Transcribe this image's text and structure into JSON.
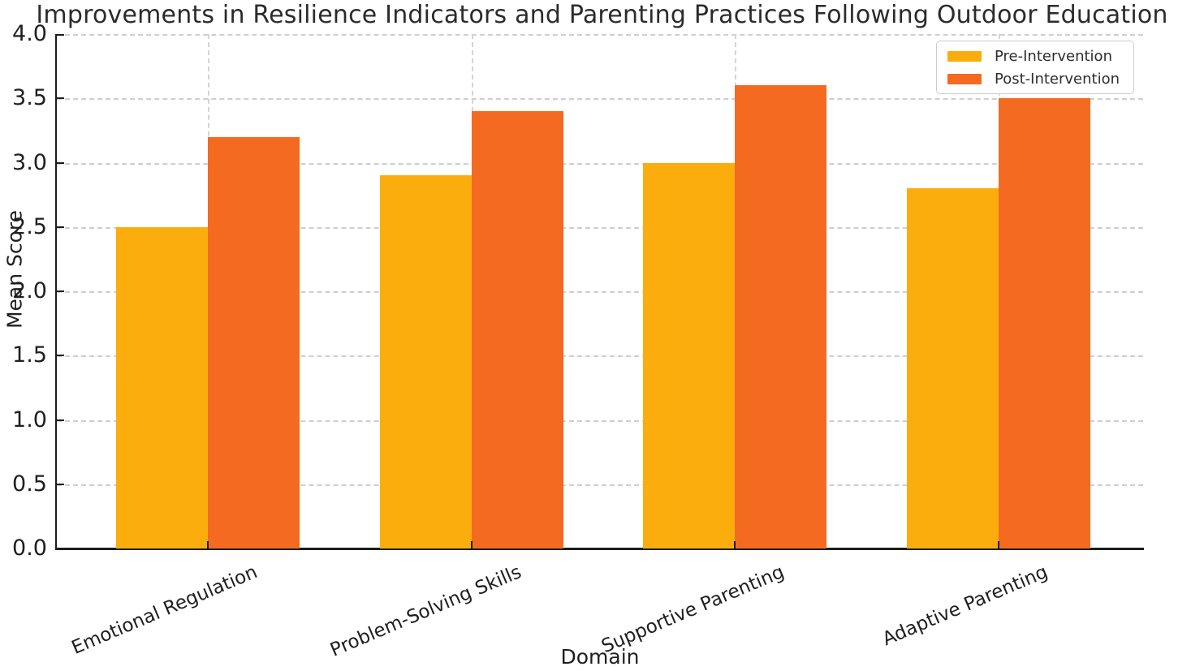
{
  "chart_data": {
    "type": "bar",
    "title": "Improvements in Resilience Indicators and Parenting Practices Following Outdoor Education",
    "xlabel": "Domain",
    "ylabel": "Mean Score",
    "categories": [
      "Emotional Regulation",
      "Problem-Solving Skills",
      "Supportive Parenting",
      "Adaptive Parenting"
    ],
    "series": [
      {
        "name": "Pre-Intervention",
        "color": "#FBAD0E",
        "values": [
          2.5,
          2.9,
          3.0,
          2.8
        ]
      },
      {
        "name": "Post-Intervention",
        "color": "#F46A20",
        "values": [
          3.2,
          3.4,
          3.6,
          3.5
        ]
      }
    ],
    "ylim": [
      0,
      4
    ],
    "ytick_step": 0.5,
    "ytick_labels": [
      "0.0",
      "0.5",
      "1.0",
      "1.5",
      "2.0",
      "2.5",
      "3.0",
      "3.5",
      "4.0"
    ],
    "grid": true,
    "grid_style": "dashed",
    "legend_position": "upper right",
    "colors": {
      "axis": "#1c1c1c",
      "gridline": "#cfcfcf",
      "text": "#1f1f1f"
    }
  }
}
